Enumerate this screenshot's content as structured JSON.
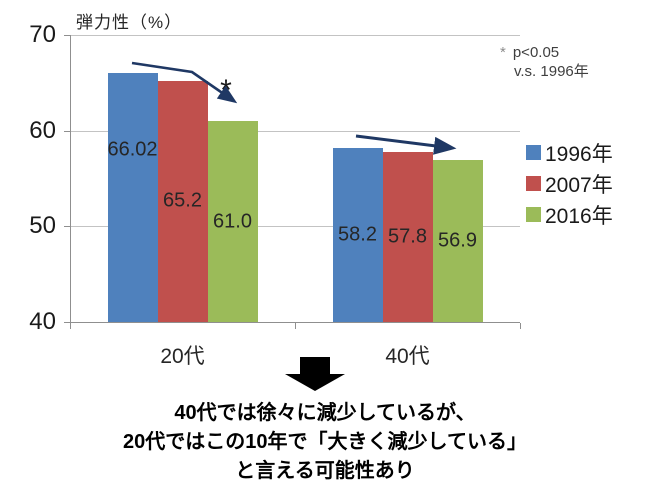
{
  "chart_data": {
    "type": "bar",
    "title": "弾力性（%）",
    "categories": [
      "20代",
      "40代"
    ],
    "series": [
      {
        "name": "1996年",
        "color": "#4F81BD",
        "values": [
          66.02,
          58.2
        ]
      },
      {
        "name": "2007年",
        "color": "#C0504D",
        "values": [
          65.2,
          57.8
        ]
      },
      {
        "name": "2016年",
        "color": "#9BBB59",
        "values": [
          61.0,
          56.9
        ]
      }
    ],
    "value_labels": [
      [
        "66.02",
        "65.2",
        "61.0"
      ],
      [
        "58.2",
        "57.8",
        "56.9"
      ]
    ],
    "ylim": [
      40,
      70
    ],
    "yticks": [
      70,
      60,
      50,
      40
    ],
    "grid": true,
    "legend_position": "right",
    "arrow_color": "#1F3864"
  },
  "annotations": {
    "sig_marker": "*",
    "sig_text": "p<0.05",
    "sig_vs": "v.s. 1996年",
    "bar_asterisk": "*"
  },
  "caption": {
    "line1": "40代では徐々に減少しているが、",
    "line2": "20代ではこの10年で「大きく減少している」",
    "line3": "と言える可能性あり"
  }
}
